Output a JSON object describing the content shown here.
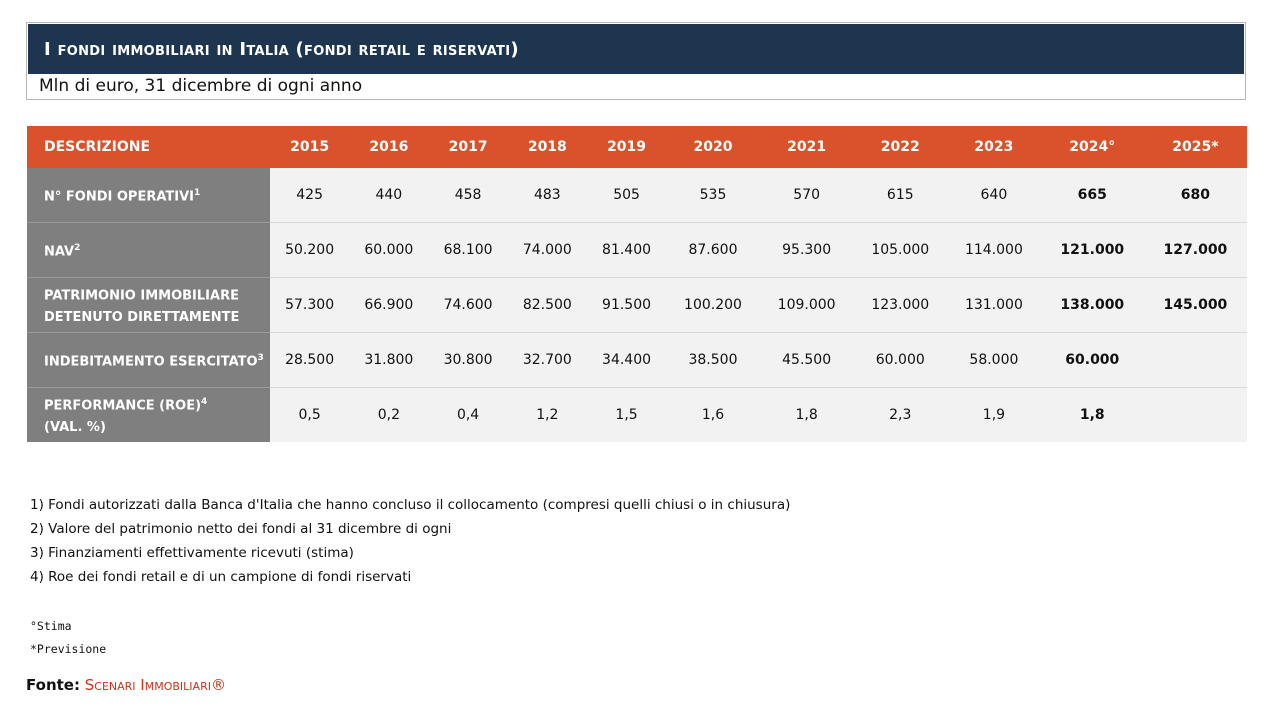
{
  "header": {
    "title": "I fondi immobiliari in Italia (fondi retail e riservati)",
    "subtitle": "Mln di euro, 31 dicembre di ogni anno"
  },
  "table": {
    "columns": [
      "DESCRIZIONE",
      "2015",
      "2016",
      "2017",
      "2018",
      "2019",
      "2020",
      "2021",
      "2022",
      "2023",
      "2024°",
      "2025*"
    ],
    "rows": [
      {
        "label": "N° FONDI OPERATIVI",
        "sup": "1",
        "label2": "",
        "values": [
          "425",
          "440",
          "458",
          "483",
          "505",
          "535",
          "570",
          "615",
          "640",
          "665",
          "680"
        ]
      },
      {
        "label": "NAV",
        "sup": "2",
        "label2": "",
        "values": [
          "50.200",
          "60.000",
          "68.100",
          "74.000",
          "81.400",
          "87.600",
          "95.300",
          "105.000",
          "114.000",
          "121.000",
          "127.000"
        ]
      },
      {
        "label": "PATRIMONIO IMMOBILIARE",
        "sup": "",
        "label2": "DETENUTO DIRETTAMENTE",
        "values": [
          "57.300",
          "66.900",
          "74.600",
          "82.500",
          "91.500",
          "100.200",
          "109.000",
          "123.000",
          "131.000",
          "138.000",
          "145.000"
        ]
      },
      {
        "label": "INDEBITAMENTO ESERCITATO",
        "sup": "3",
        "label2": "",
        "values": [
          "28.500",
          "31.800",
          "30.800",
          "32.700",
          "34.400",
          "38.500",
          "45.500",
          "60.000",
          "58.000",
          "60.000",
          ""
        ]
      },
      {
        "label": "PERFORMANCE (ROE)",
        "sup": "4",
        "label2": "(VAL. %)",
        "values": [
          "0,5",
          "0,2",
          "0,4",
          "1,2",
          "1,5",
          "1,6",
          "1,8",
          "2,3",
          "1,9",
          "1,8",
          ""
        ]
      }
    ]
  },
  "notes": [
    "1) Fondi autorizzati dalla Banca d'Italia che hanno concluso il collocamento (compresi quelli chiusi o in chiusura)",
    "2) Valore del patrimonio netto dei fondi al 31 dicembre di ogni",
    "3) Finanziamenti effettivamente ricevuti (stima)",
    "4) Roe dei fondi retail e di un campione di fondi riservati"
  ],
  "legend": [
    "°Stima",
    "*Previsione"
  ],
  "source": {
    "label": "Fonte:",
    "org": "Scenari Immobiliari®"
  }
}
